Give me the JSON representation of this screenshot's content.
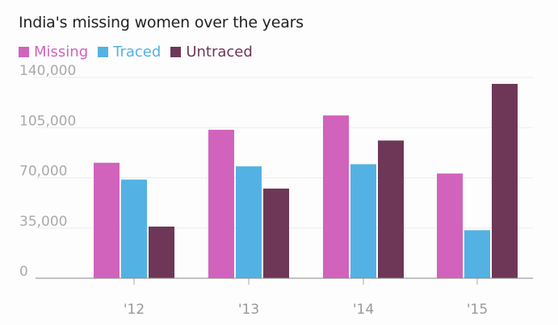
{
  "chart_data": {
    "type": "bar",
    "title": "India's missing women over the years",
    "categories": [
      "'12",
      "'13",
      "'14",
      "'15"
    ],
    "series": [
      {
        "name": "Missing",
        "color": "#d163bd",
        "values": [
          80500,
          103500,
          113500,
          73000
        ]
      },
      {
        "name": "Traced",
        "color": "#53b2e3",
        "values": [
          68800,
          78000,
          79500,
          33500
        ]
      },
      {
        "name": "Untraced",
        "color": "#6e3758",
        "values": [
          36000,
          62500,
          96000,
          135500
        ]
      }
    ],
    "ylim": [
      0,
      140000
    ],
    "yticks": [
      0,
      35000,
      70000,
      105000,
      140000
    ],
    "ytick_labels": [
      "0",
      "35,000",
      "70,000",
      "105,000",
      "140,000"
    ],
    "xlabel": "",
    "ylabel": "",
    "grid": true,
    "legend_position": "top-left"
  }
}
